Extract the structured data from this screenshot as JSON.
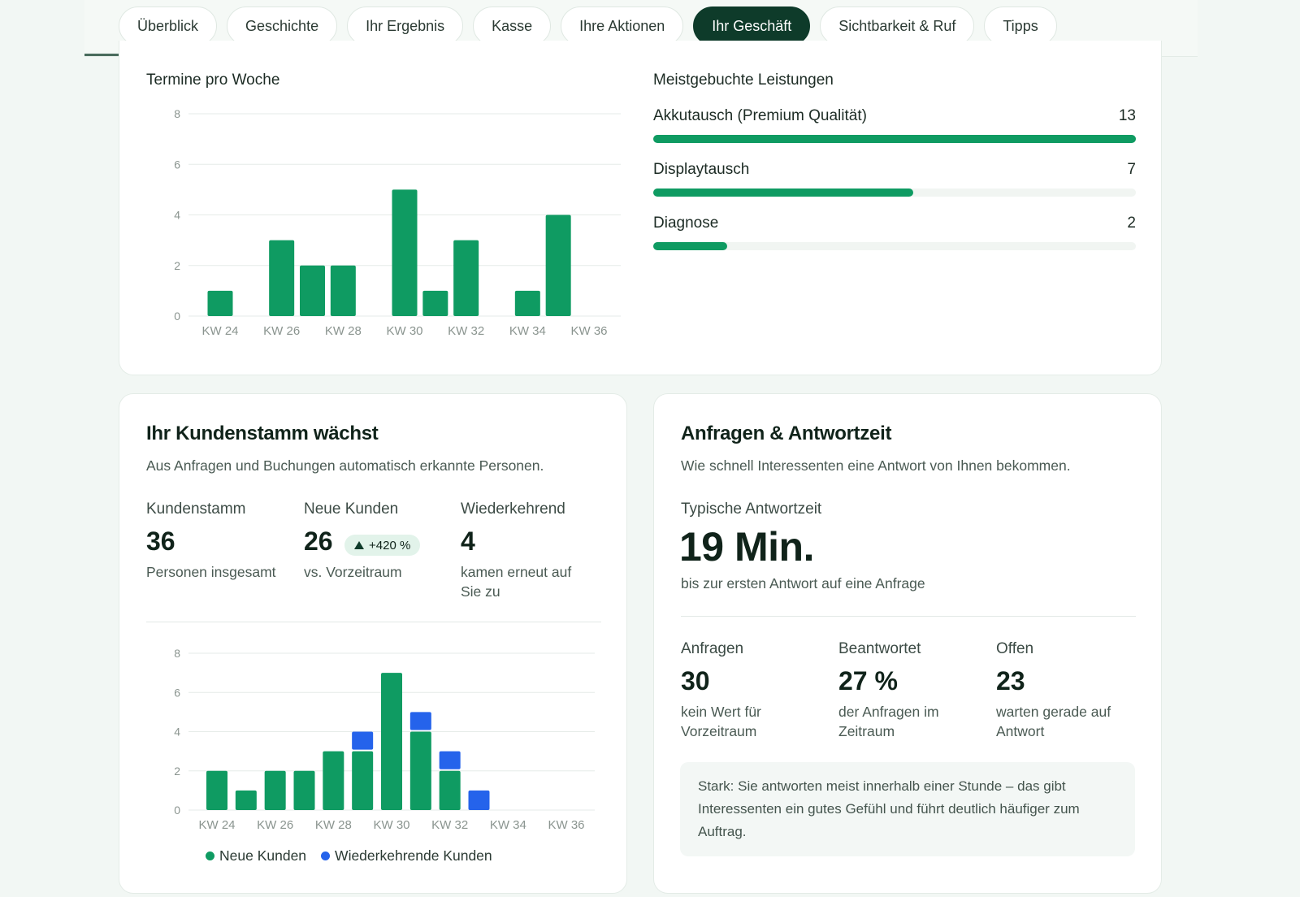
{
  "tabs": [
    {
      "label": "Überblick"
    },
    {
      "label": "Geschichte"
    },
    {
      "label": "Ihr Ergebnis"
    },
    {
      "label": "Kasse"
    },
    {
      "label": "Ihre Aktionen"
    },
    {
      "label": "Ihr Geschäft",
      "active": true
    },
    {
      "label": "Sichtbarkeit & Ruf"
    },
    {
      "label": "Tipps"
    }
  ],
  "tab_progress": 0.61,
  "appointments": {
    "title": "Termine pro Woche",
    "chart_data": {
      "type": "bar",
      "categories": [
        "KW 24",
        "KW 25",
        "KW 26",
        "KW 27",
        "KW 28",
        "KW 29",
        "KW 30",
        "KW 31",
        "KW 32",
        "KW 33",
        "KW 34",
        "KW 35",
        "KW 36"
      ],
      "tick_labels": [
        "KW 24",
        "KW 26",
        "KW 28",
        "KW 30",
        "KW 32",
        "KW 34",
        "KW 36"
      ],
      "values": [
        1,
        0,
        3,
        2,
        2,
        0,
        5,
        1,
        3,
        0,
        1,
        4,
        0
      ],
      "ylim": [
        0,
        8
      ],
      "yticks": [
        0,
        2,
        4,
        6,
        8
      ],
      "colors": {
        "bar": "#0f9b62"
      },
      "grid": true
    }
  },
  "services": {
    "title": "Meistgebuchte Leistungen",
    "max": 13,
    "items": [
      {
        "label": "Akkutausch (Premium Qualität)",
        "value": "13",
        "count": 13
      },
      {
        "label": "Displaytausch",
        "value": "7",
        "count": 7
      },
      {
        "label": "Diagnose",
        "value": "2",
        "count": 2
      }
    ]
  },
  "customers": {
    "title": "Ihr Kundenstamm wächst",
    "subtitle": "Aus Anfragen und Buchungen automatisch erkannte Personen.",
    "kpis": [
      {
        "label": "Kundenstamm",
        "value": "36",
        "note": "Personen insgesamt"
      },
      {
        "label": "Neue Kunden",
        "value": "26",
        "note": "vs. Vorzeitraum",
        "badge": "+420 %"
      },
      {
        "label": "Wiederkehrend",
        "value": "4",
        "note": "kamen erneut auf Sie zu"
      }
    ],
    "chart_data": {
      "type": "bar",
      "stacked": true,
      "categories": [
        "KW 24",
        "KW 25",
        "KW 26",
        "KW 27",
        "KW 28",
        "KW 29",
        "KW 30",
        "KW 31",
        "KW 32",
        "KW 33",
        "KW 34",
        "KW 35",
        "KW 36"
      ],
      "tick_labels": [
        "KW 24",
        "KW 26",
        "KW 28",
        "KW 30",
        "KW 32",
        "KW 34",
        "KW 36"
      ],
      "series": [
        {
          "name": "Neue Kunden",
          "values": [
            2,
            1,
            2,
            2,
            3,
            3,
            7,
            4,
            2,
            0,
            0,
            0,
            0
          ],
          "color": "#0f9b62"
        },
        {
          "name": "Wiederkehrende Kunden",
          "values": [
            0,
            0,
            0,
            0,
            0,
            1,
            0,
            1,
            1,
            1,
            0,
            0,
            0
          ],
          "color": "#2563eb"
        }
      ],
      "ylim": [
        0,
        8
      ],
      "yticks": [
        0,
        2,
        4,
        6,
        8
      ],
      "grid": true,
      "legend": "bottom"
    }
  },
  "responses": {
    "title": "Anfragen & Antwortzeit",
    "subtitle": "Wie schnell Interessenten eine Antwort von Ihnen bekommen.",
    "typical_label": "Typische Antwortzeit",
    "typical_value": "19 Min.",
    "typical_note": "bis zur ersten Antwort auf eine Anfrage",
    "kpis": [
      {
        "label": "Anfragen",
        "value": "30",
        "note": "kein Wert für Vorzeitraum"
      },
      {
        "label": "Beantwortet",
        "value": "27 %",
        "note": "der Anfragen im Zeitraum"
      },
      {
        "label": "Offen",
        "value": "23",
        "note": "warten gerade auf Antwort"
      }
    ],
    "callout": "Stark: Sie antworten meist innerhalb einer Stunde – das gibt Interessenten ein gutes Gefühl und führt deutlich häufiger zum Auftrag."
  }
}
